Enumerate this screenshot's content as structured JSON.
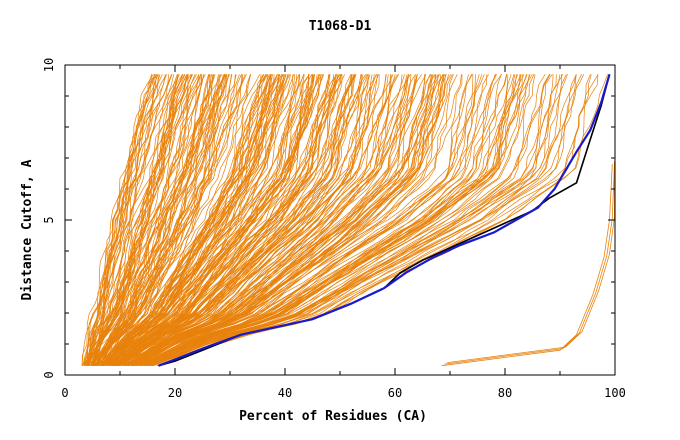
{
  "chart_data": {
    "type": "line",
    "title": "T1068-D1",
    "xlabel": "Percent of Residues (CA)",
    "ylabel": "Distance Cutoff, A",
    "xlim": [
      0,
      100
    ],
    "ylim": [
      0,
      10
    ],
    "x_ticks": [
      "0",
      "20",
      "40",
      "60",
      "80",
      "100"
    ],
    "y_ticks": [
      "0",
      "5",
      "10"
    ],
    "grid": false,
    "legend": "none",
    "colors": {
      "models": "#e8820c",
      "highlight_black": "#000000",
      "highlight_blue": "#1a1acc",
      "axes": "#000000"
    },
    "model_count": 320,
    "model_envelope": [
      {
        "name": "worst-models-left",
        "points": [
          [
            3.5,
            0.3
          ],
          [
            6,
            2
          ],
          [
            8,
            4
          ],
          [
            10,
            6
          ],
          [
            13,
            8
          ],
          [
            16,
            9.7
          ]
        ]
      },
      {
        "name": "main-band-lower",
        "points": [
          [
            17,
            0.3
          ],
          [
            30,
            1.2
          ],
          [
            45,
            1.8
          ],
          [
            60,
            3.2
          ],
          [
            80,
            5
          ],
          [
            93,
            6.5
          ],
          [
            98,
            9.7
          ]
        ]
      }
    ],
    "outlier_series": [
      {
        "name": "outlier",
        "points": [
          [
            68.5,
            0.3
          ],
          [
            90,
            0.8
          ],
          [
            93,
            1.3
          ],
          [
            96,
            2.6
          ],
          [
            98,
            3.8
          ],
          [
            99,
            5
          ],
          [
            99.5,
            6.8
          ]
        ]
      }
    ],
    "highlight_series": [
      {
        "color": "black",
        "points": [
          [
            17,
            0.3
          ],
          [
            20,
            0.45
          ],
          [
            25,
            0.8
          ],
          [
            32,
            1.3
          ],
          [
            45,
            1.8
          ],
          [
            52,
            2.3
          ],
          [
            58,
            2.8
          ],
          [
            61,
            3.3
          ],
          [
            65,
            3.7
          ],
          [
            70,
            4.1
          ],
          [
            75,
            4.5
          ],
          [
            80,
            4.9
          ],
          [
            85,
            5.3
          ],
          [
            88,
            5.7
          ],
          [
            93,
            6.2
          ],
          [
            95.5,
            7.6
          ],
          [
            97.5,
            8.7
          ],
          [
            99,
            9.7
          ]
        ]
      },
      {
        "color": "blue",
        "points": [
          [
            17,
            0.3
          ],
          [
            20,
            0.5
          ],
          [
            25,
            0.85
          ],
          [
            32,
            1.3
          ],
          [
            45,
            1.8
          ],
          [
            52,
            2.3
          ],
          [
            58,
            2.8
          ],
          [
            62,
            3.3
          ],
          [
            67,
            3.8
          ],
          [
            72,
            4.2
          ],
          [
            78,
            4.6
          ],
          [
            82,
            5
          ],
          [
            86,
            5.4
          ],
          [
            89,
            6
          ],
          [
            91,
            6.6
          ],
          [
            93,
            7.2
          ],
          [
            95.5,
            7.9
          ],
          [
            97.5,
            8.8
          ],
          [
            99,
            9.7
          ]
        ]
      }
    ]
  }
}
